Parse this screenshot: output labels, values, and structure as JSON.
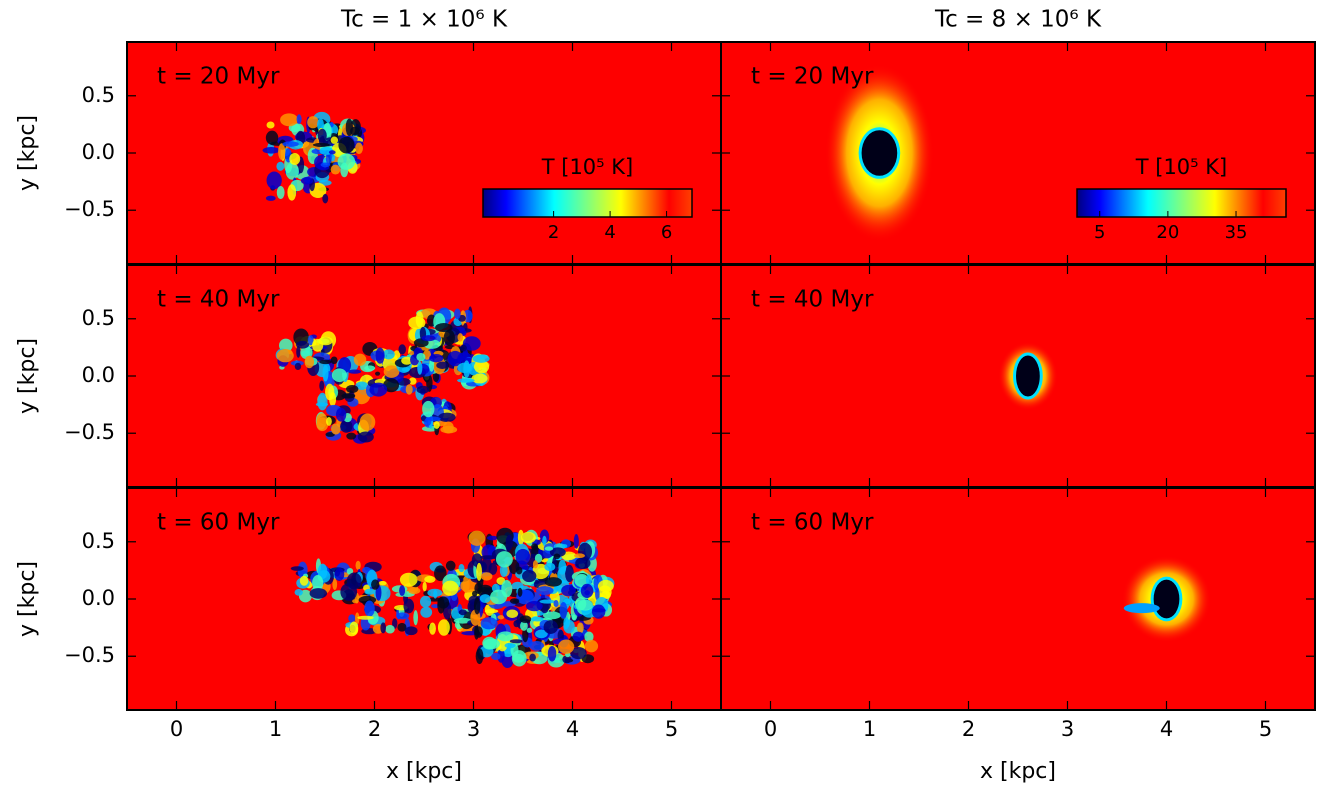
{
  "chart_data": [
    {
      "type": "heatmap",
      "title": "Tc = 1 × 10⁶ K",
      "annotation": "t = 20 Myr",
      "ylabel": "y [kpc]",
      "xlim": [
        -0.5,
        5.5
      ],
      "xticks": [
        0,
        1,
        2,
        3,
        4,
        5
      ],
      "ylim": [
        -0.97,
        0.97
      ],
      "yticks": [
        {
          "value": -0.5,
          "label": "−0.5"
        },
        {
          "value": 0,
          "label": "0.0"
        },
        0.5
      ],
      "colorbar": {
        "label": "T [10⁵ K]",
        "clim": [
          -0.5,
          6.9
        ],
        "cticks": [
          2,
          4,
          6
        ]
      }
    },
    {
      "type": "heatmap",
      "title": "Tc = 8 × 10⁶ K",
      "annotation": "t = 20 Myr",
      "xlim": [
        -0.5,
        5.5
      ],
      "xticks": [
        0,
        1,
        2,
        3,
        4,
        5
      ],
      "ylim": [
        -0.97,
        0.97
      ],
      "yticks": [
        -0.5,
        0,
        0.5
      ],
      "colorbar": {
        "label": "T [10⁵ K]",
        "clim": [
          0,
          46
        ],
        "cticks": [
          5,
          20,
          35
        ]
      }
    },
    {
      "type": "heatmap",
      "annotation": "t = 40 Myr",
      "ylabel": "y [kpc]",
      "xlim": [
        -0.5,
        5.5
      ],
      "xticks": [
        0,
        1,
        2,
        3,
        4,
        5
      ],
      "ylim": [
        -0.97,
        0.97
      ],
      "yticks": [
        {
          "value": -0.5,
          "label": "−0.5"
        },
        {
          "value": 0,
          "label": "0.0"
        },
        0.5
      ]
    },
    {
      "type": "heatmap",
      "annotation": "t = 40 Myr",
      "xlim": [
        -0.5,
        5.5
      ],
      "xticks": [
        0,
        1,
        2,
        3,
        4,
        5
      ],
      "ylim": [
        -0.97,
        0.97
      ],
      "yticks": [
        -0.5,
        0,
        0.5
      ]
    },
    {
      "type": "heatmap",
      "annotation": "t = 60 Myr",
      "ylabel": "y [kpc]",
      "xlabel": "x [kpc]",
      "xlim": [
        -0.5,
        5.5
      ],
      "xticks": [
        0,
        1,
        2,
        3,
        4,
        5
      ],
      "ylim": [
        -0.97,
        0.97
      ],
      "yticks": [
        {
          "value": -0.5,
          "label": "−0.5"
        },
        {
          "value": 0,
          "label": "0.0"
        },
        0.5
      ]
    },
    {
      "type": "heatmap",
      "annotation": "t = 60 Myr",
      "xlabel": "x [kpc]",
      "xlim": [
        -0.5,
        5.5
      ],
      "xticks": [
        0,
        1,
        2,
        3,
        4,
        5
      ],
      "ylim": [
        -0.97,
        0.97
      ],
      "yticks": [
        -0.5,
        0,
        0.5
      ]
    }
  ]
}
